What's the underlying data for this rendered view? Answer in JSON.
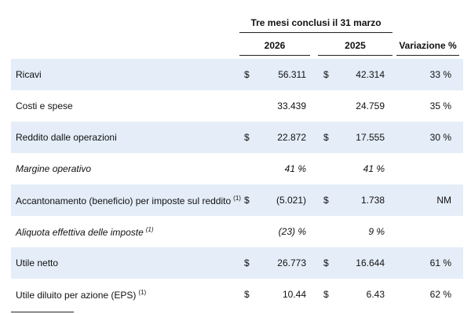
{
  "header": {
    "period": "Tre mesi conclusi il 31 marzo",
    "columns": [
      "2026",
      "2025",
      "Variazione %"
    ]
  },
  "table": {
    "rows": [
      {
        "label": "Ricavi",
        "shaded": true,
        "cur_2026": "$",
        "v_2026": "56.311",
        "cur_2025": "$",
        "v_2025": "42.314",
        "change": "33 %"
      },
      {
        "label": "Costi e spese",
        "v_2026": "33.439",
        "v_2025": "24.759",
        "change": "35 %"
      },
      {
        "label": "Reddito dalle operazioni",
        "shaded": true,
        "cur_2026": "$",
        "v_2026": "22.872",
        "cur_2025": "$",
        "v_2025": "17.555",
        "change": "30 %"
      },
      {
        "label": "Margine operativo",
        "italic": true,
        "v_2026": "41 %",
        "v_2025": "41 %"
      },
      {
        "label": "Accantonamento (beneficio) per imposte sul reddito",
        "note": "(1)",
        "shaded": true,
        "cur_2026": "$",
        "v_2026": "(5.021)",
        "cur_2025": "$",
        "v_2025": "1.738",
        "change": "NM"
      },
      {
        "label": "Aliquota effettiva delle imposte",
        "note": "(1)",
        "italic": true,
        "v_2026": "(23) %",
        "v_2025": "9 %"
      },
      {
        "label": "Utile netto",
        "shaded": true,
        "cur_2026": "$",
        "v_2026": "26.773",
        "cur_2025": "$",
        "v_2025": "16.644",
        "change": "61 %"
      },
      {
        "label": "Utile diluito per azione (EPS)",
        "note": "(1)",
        "cur_2026": "$",
        "v_2026": "10.44",
        "cur_2025": "$",
        "v_2025": "6.43",
        "change": "62 %"
      }
    ]
  }
}
